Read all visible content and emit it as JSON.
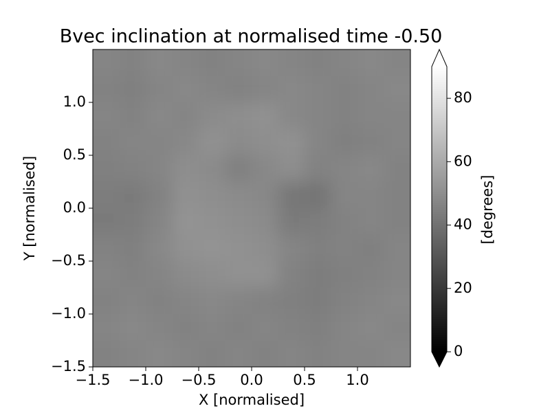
{
  "chart_data": {
    "type": "heatmap",
    "title": "Bvec inclination at normalised time -0.50",
    "xlabel": "X [normalised]",
    "ylabel": "Y [normalised]",
    "colorbar_label": "[degrees]",
    "cmap": "gray",
    "colorbar_extend": "both",
    "xlim": [
      -1.5,
      1.5
    ],
    "ylim": [
      -1.5,
      1.5
    ],
    "clim": [
      0,
      90
    ],
    "xticks": [
      {
        "value": -1.5,
        "label": "−1.5"
      },
      {
        "value": -1.0,
        "label": "−1.0"
      },
      {
        "value": -0.5,
        "label": "−0.5"
      },
      {
        "value": 0,
        "label": "0.0"
      },
      {
        "value": 0.5,
        "label": "0.5"
      },
      {
        "value": 1.0,
        "label": "1.0"
      }
    ],
    "yticks": [
      {
        "value": -1.5,
        "label": "−1.5"
      },
      {
        "value": -1.0,
        "label": "−1.0"
      },
      {
        "value": -0.5,
        "label": "−0.5"
      },
      {
        "value": 0,
        "label": "0.0"
      },
      {
        "value": 0.5,
        "label": "0.5"
      },
      {
        "value": 1.0,
        "label": "1.0"
      }
    ],
    "cticks": [
      0,
      20,
      40,
      60,
      80
    ],
    "x": [
      -1.375,
      -1.125,
      -0.875,
      -0.625,
      -0.375,
      -0.125,
      0.125,
      0.375,
      0.625,
      0.875,
      1.125,
      1.375
    ],
    "y": [
      1.375,
      1.125,
      0.875,
      0.625,
      0.375,
      0.125,
      -0.125,
      -0.375,
      -0.625,
      -0.875,
      -1.125,
      -1.375
    ],
    "z": [
      [
        47,
        46,
        48,
        47,
        46,
        47,
        48,
        47,
        46,
        47,
        48,
        47
      ],
      [
        46,
        45,
        47,
        48,
        47,
        46,
        47,
        48,
        47,
        46,
        47,
        48
      ],
      [
        47,
        46,
        48,
        47,
        49,
        50,
        51,
        48,
        47,
        46,
        47,
        47
      ],
      [
        46,
        47,
        47,
        48,
        51,
        49,
        50,
        51,
        47,
        45,
        46,
        47
      ],
      [
        45,
        46,
        47,
        50,
        49,
        45,
        48,
        50,
        46,
        47,
        48,
        46
      ],
      [
        44,
        43,
        46,
        51,
        50,
        49,
        48,
        42,
        41,
        47,
        47,
        46
      ],
      [
        43,
        44,
        47,
        52,
        51,
        50,
        49,
        43,
        44,
        46,
        47,
        46
      ],
      [
        46,
        45,
        48,
        51,
        52,
        51,
        50,
        47,
        45,
        46,
        45,
        47
      ],
      [
        47,
        46,
        47,
        49,
        50,
        51,
        51,
        46,
        44,
        45,
        46,
        47
      ],
      [
        46,
        47,
        46,
        47,
        48,
        47,
        46,
        45,
        44,
        46,
        47,
        48
      ],
      [
        47,
        48,
        47,
        46,
        47,
        46,
        47,
        46,
        45,
        47,
        48,
        47
      ],
      [
        46,
        47,
        48,
        47,
        46,
        47,
        46,
        47,
        46,
        47,
        47,
        48
      ]
    ]
  }
}
